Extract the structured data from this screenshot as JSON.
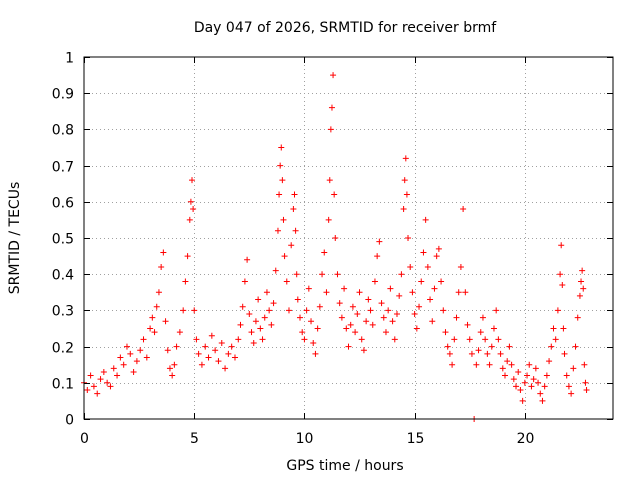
{
  "chart_data": {
    "type": "scatter",
    "title": "Day 047 of 2026, SRMTID for receiver brmf",
    "xlabel": "GPS time / hours",
    "ylabel": "SRMTID / TECUs",
    "xlim": [
      0,
      24
    ],
    "ylim": [
      0,
      1
    ],
    "grid": true,
    "marker": "+",
    "color": "#ff0000",
    "x_ticks": [
      0,
      5,
      10,
      15,
      20
    ],
    "y_ticks": [
      0,
      0.1,
      0.2,
      0.3,
      0.4,
      0.5,
      0.6,
      0.7,
      0.8,
      0.9,
      1
    ],
    "x_tick_labels": [
      "0",
      "5",
      "10",
      "15",
      "20"
    ],
    "y_tick_labels": [
      "0",
      "0.1",
      "0.2",
      "0.3",
      "0.4",
      "0.5",
      "0.6",
      "0.7",
      "0.8",
      "0.9",
      "1"
    ],
    "series": [
      {
        "name": "SRMTID",
        "x": [
          0.0,
          0.15,
          0.3,
          0.45,
          0.6,
          0.75,
          0.9,
          1.05,
          1.2,
          1.35,
          1.5,
          1.65,
          1.8,
          1.95,
          2.1,
          2.25,
          2.4,
          2.55,
          2.7,
          2.85,
          3.0,
          3.1,
          3.2,
          3.3,
          3.4,
          3.5,
          3.6,
          3.7,
          3.8,
          3.9,
          4.0,
          4.1,
          4.2,
          4.35,
          4.5,
          4.6,
          4.7,
          4.8,
          4.85,
          4.9,
          4.95,
          5.0,
          5.1,
          5.2,
          5.35,
          5.5,
          5.65,
          5.8,
          5.95,
          6.1,
          6.25,
          6.4,
          6.55,
          6.7,
          6.85,
          7.0,
          7.1,
          7.2,
          7.3,
          7.4,
          7.5,
          7.6,
          7.7,
          7.8,
          7.9,
          8.0,
          8.1,
          8.2,
          8.3,
          8.4,
          8.5,
          8.6,
          8.7,
          8.8,
          8.85,
          8.9,
          8.95,
          9.0,
          9.05,
          9.1,
          9.2,
          9.3,
          9.4,
          9.5,
          9.55,
          9.6,
          9.65,
          9.7,
          9.8,
          9.9,
          10.0,
          10.1,
          10.2,
          10.3,
          10.4,
          10.5,
          10.6,
          10.7,
          10.8,
          10.9,
          11.0,
          11.1,
          11.15,
          11.2,
          11.25,
          11.3,
          11.35,
          11.4,
          11.5,
          11.6,
          11.7,
          11.8,
          11.9,
          12.0,
          12.1,
          12.2,
          12.3,
          12.4,
          12.5,
          12.6,
          12.7,
          12.8,
          12.9,
          13.0,
          13.1,
          13.2,
          13.3,
          13.4,
          13.5,
          13.6,
          13.7,
          13.8,
          13.9,
          14.0,
          14.1,
          14.2,
          14.3,
          14.4,
          14.5,
          14.55,
          14.6,
          14.65,
          14.7,
          14.8,
          14.9,
          15.0,
          15.1,
          15.2,
          15.3,
          15.4,
          15.5,
          15.6,
          15.7,
          15.8,
          15.9,
          16.0,
          16.1,
          16.2,
          16.3,
          16.4,
          16.5,
          16.6,
          16.7,
          16.8,
          16.9,
          17.0,
          17.1,
          17.2,
          17.3,
          17.4,
          17.5,
          17.6,
          17.7,
          17.8,
          17.9,
          18.0,
          18.1,
          18.2,
          18.3,
          18.4,
          18.5,
          18.6,
          18.7,
          18.8,
          18.9,
          19.0,
          19.1,
          19.2,
          19.3,
          19.4,
          19.5,
          19.6,
          19.7,
          19.8,
          19.9,
          20.0,
          20.1,
          20.2,
          20.3,
          20.4,
          20.5,
          20.6,
          20.7,
          20.8,
          20.9,
          21.0,
          21.1,
          21.2,
          21.3,
          21.4,
          21.5,
          21.6,
          21.65,
          21.7,
          21.75,
          21.8,
          21.9,
          22.0,
          22.1,
          22.2,
          22.3,
          22.4,
          22.5,
          22.55,
          22.6,
          22.65,
          22.7,
          22.75,
          22.8
        ],
        "y": [
          0.1,
          0.08,
          0.12,
          0.09,
          0.07,
          0.11,
          0.13,
          0.1,
          0.09,
          0.14,
          0.12,
          0.17,
          0.15,
          0.2,
          0.18,
          0.13,
          0.16,
          0.19,
          0.22,
          0.17,
          0.25,
          0.28,
          0.24,
          0.31,
          0.35,
          0.42,
          0.46,
          0.27,
          0.19,
          0.14,
          0.12,
          0.15,
          0.2,
          0.24,
          0.3,
          0.38,
          0.45,
          0.55,
          0.6,
          0.66,
          0.58,
          0.3,
          0.22,
          0.18,
          0.15,
          0.2,
          0.17,
          0.23,
          0.19,
          0.16,
          0.21,
          0.14,
          0.18,
          0.2,
          0.17,
          0.22,
          0.26,
          0.31,
          0.38,
          0.44,
          0.29,
          0.24,
          0.21,
          0.27,
          0.33,
          0.25,
          0.22,
          0.28,
          0.35,
          0.3,
          0.26,
          0.32,
          0.41,
          0.52,
          0.62,
          0.7,
          0.75,
          0.66,
          0.55,
          0.45,
          0.38,
          0.3,
          0.48,
          0.58,
          0.62,
          0.52,
          0.4,
          0.33,
          0.28,
          0.24,
          0.22,
          0.3,
          0.36,
          0.27,
          0.21,
          0.18,
          0.25,
          0.31,
          0.4,
          0.46,
          0.35,
          0.55,
          0.66,
          0.8,
          0.86,
          0.95,
          0.62,
          0.5,
          0.4,
          0.32,
          0.28,
          0.36,
          0.25,
          0.2,
          0.26,
          0.31,
          0.24,
          0.29,
          0.35,
          0.22,
          0.19,
          0.27,
          0.33,
          0.3,
          0.26,
          0.38,
          0.45,
          0.49,
          0.32,
          0.28,
          0.24,
          0.3,
          0.36,
          0.27,
          0.22,
          0.29,
          0.34,
          0.4,
          0.58,
          0.66,
          0.72,
          0.62,
          0.5,
          0.42,
          0.35,
          0.29,
          0.25,
          0.31,
          0.38,
          0.46,
          0.55,
          0.42,
          0.33,
          0.27,
          0.36,
          0.45,
          0.47,
          0.38,
          0.3,
          0.24,
          0.2,
          0.18,
          0.15,
          0.22,
          0.28,
          0.35,
          0.42,
          0.58,
          0.35,
          0.26,
          0.22,
          0.18,
          0.0,
          0.15,
          0.19,
          0.24,
          0.28,
          0.22,
          0.18,
          0.15,
          0.2,
          0.25,
          0.3,
          0.22,
          0.18,
          0.14,
          0.12,
          0.16,
          0.2,
          0.15,
          0.11,
          0.09,
          0.13,
          0.08,
          0.05,
          0.1,
          0.12,
          0.15,
          0.09,
          0.11,
          0.14,
          0.1,
          0.07,
          0.05,
          0.09,
          0.12,
          0.16,
          0.2,
          0.25,
          0.22,
          0.3,
          0.4,
          0.48,
          0.37,
          0.25,
          0.18,
          0.12,
          0.09,
          0.07,
          0.14,
          0.2,
          0.28,
          0.34,
          0.38,
          0.41,
          0.36,
          0.15,
          0.1,
          0.08
        ]
      }
    ]
  }
}
